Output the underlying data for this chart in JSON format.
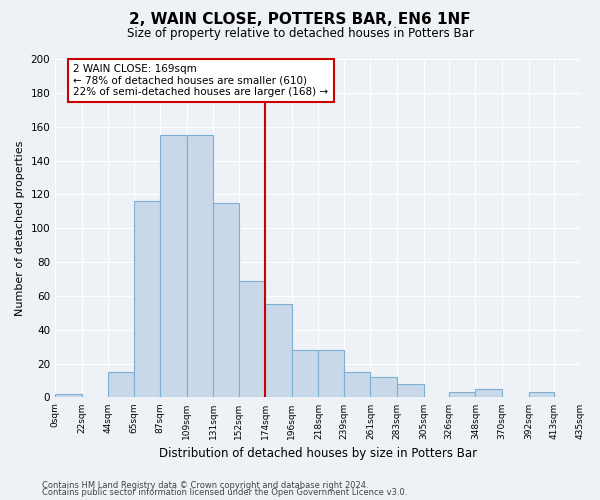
{
  "title": "2, WAIN CLOSE, POTTERS BAR, EN6 1NF",
  "subtitle": "Size of property relative to detached houses in Potters Bar",
  "xlabel": "Distribution of detached houses by size in Potters Bar",
  "ylabel": "Number of detached properties",
  "footer_line1": "Contains HM Land Registry data © Crown copyright and database right 2024.",
  "footer_line2": "Contains public sector information licensed under the Open Government Licence v3.0.",
  "bin_edges": [
    0,
    22,
    44,
    65,
    87,
    109,
    131,
    152,
    174,
    196,
    218,
    239,
    261,
    283,
    305,
    326,
    348,
    370,
    392,
    413,
    435
  ],
  "bin_labels": [
    "0sqm",
    "22sqm",
    "44sqm",
    "65sqm",
    "87sqm",
    "109sqm",
    "131sqm",
    "152sqm",
    "174sqm",
    "196sqm",
    "218sqm",
    "239sqm",
    "261sqm",
    "283sqm",
    "305sqm",
    "326sqm",
    "348sqm",
    "370sqm",
    "392sqm",
    "413sqm",
    "435sqm"
  ],
  "counts": [
    2,
    0,
    15,
    116,
    155,
    155,
    115,
    69,
    55,
    28,
    28,
    15,
    12,
    8,
    0,
    3,
    5,
    0,
    3,
    0
  ],
  "bar_color": "#c8d8e8",
  "bar_edge_color": "#7bafd4",
  "vline_x": 174,
  "vline_color": "#cc0000",
  "annotation_title": "2 WAIN CLOSE: 169sqm",
  "annotation_line1": "← 78% of detached houses are smaller (610)",
  "annotation_line2": "22% of semi-detached houses are larger (168) →",
  "annotation_box_color": "#ffffff",
  "annotation_box_edge_color": "#cc0000",
  "ylim": [
    0,
    200
  ],
  "yticks": [
    0,
    20,
    40,
    60,
    80,
    100,
    120,
    140,
    160,
    180,
    200
  ],
  "background_color": "#eef2f7",
  "grid_color": "#ffffff"
}
